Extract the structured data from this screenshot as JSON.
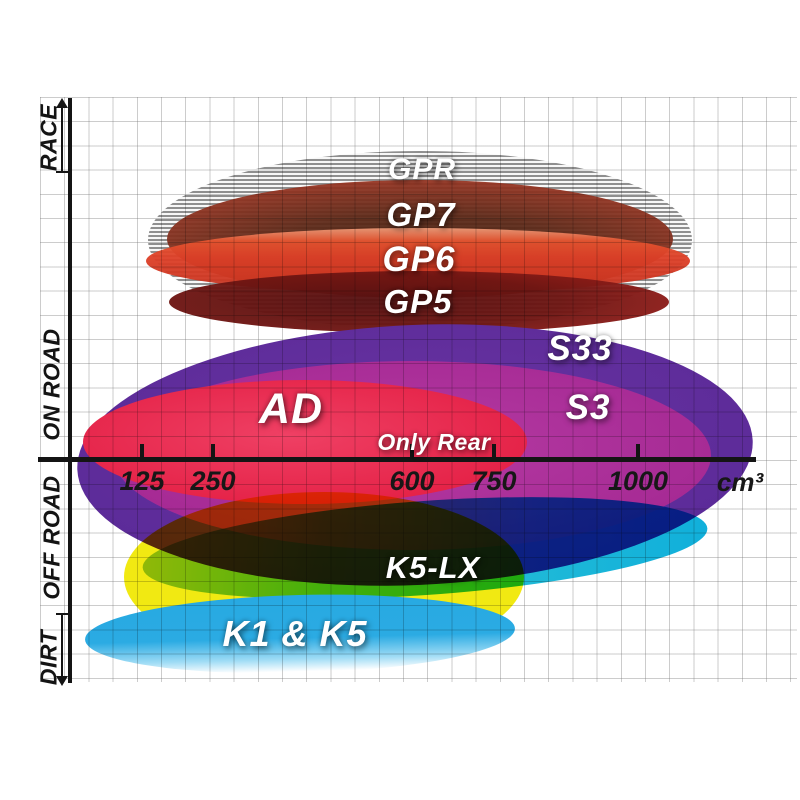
{
  "chart_data": {
    "type": "area",
    "description": "Brake pad compound application chart: ellipses show engine displacement range (x, cm³) vs riding category (y: RACE / ON ROAD / OFF ROAD / DIRT)",
    "x_axis": {
      "unit": "cm³",
      "ticks": [
        125,
        250,
        600,
        750,
        1000
      ],
      "range": [
        0,
        1250
      ]
    },
    "y_axis": {
      "categories": [
        "RACE",
        "ON ROAD",
        "OFF ROAD",
        "DIRT"
      ],
      "grid": true
    },
    "series": [
      {
        "name": "GPR",
        "band": "RACE",
        "x_range_cm3": [
          135,
          1080
        ],
        "style": "grey-striped"
      },
      {
        "name": "GP7",
        "band": "RACE",
        "x_range_cm3": [
          170,
          1045
        ],
        "style": "dark-red"
      },
      {
        "name": "GP6",
        "band": "RACE / ON ROAD",
        "x_range_cm3": [
          130,
          1075
        ],
        "style": "red"
      },
      {
        "name": "GP5",
        "band": "ON ROAD / RACE",
        "x_range_cm3": [
          170,
          1040
        ],
        "style": "dark-maroon"
      },
      {
        "name": "S33",
        "band": "ON ROAD",
        "x_range_cm3": [
          10,
          1175
        ],
        "style": "purple"
      },
      {
        "name": "S3",
        "band": "ON ROAD",
        "x_range_cm3": [
          75,
          1110
        ],
        "style": "magenta"
      },
      {
        "name": "AD",
        "band": "ON ROAD",
        "x_range_cm3": [
          25,
          795
        ],
        "style": "crimson",
        "note": "Only Rear"
      },
      {
        "name": "K5-LX",
        "band": "OFF ROAD",
        "x_range_cm3": [
          130,
          1100
        ],
        "style": "green-to-teal gradient"
      },
      {
        "name": "K1 & K5",
        "band": "DIRT",
        "x_range_cm3": [
          25,
          770
        ],
        "style": "cyan"
      }
    ],
    "legend_position": "none",
    "title": ""
  },
  "labels": {
    "gpr": "GPR",
    "gp7": "GP7",
    "gp6": "GP6",
    "gp5": "GP5",
    "s33": "S33",
    "s3": "S3",
    "ad": "AD",
    "only_rear": "Only Rear",
    "k5lx": "K5-LX",
    "k1k5": "K1 & K5"
  },
  "axis": {
    "ticks": [
      "125",
      "250",
      "600",
      "750",
      "1000"
    ],
    "unit": "cm³"
  },
  "y_labels": {
    "race": "RACE",
    "on_road": "ON ROAD",
    "off_road": "OFF ROAD",
    "dirt": "DIRT"
  },
  "colors": {
    "purple": "#5c2b99",
    "magenta": "#a72b95",
    "crimson": "#e52348",
    "red": "#dd3f27",
    "dark_red": "#5c2817",
    "maroon": "#6d1512",
    "grey_stripe": "#8f8f8f",
    "yellow": "#f1e912",
    "teal": "#1fb9d7",
    "green": "#9ccb6a",
    "cyan": "#29abe2",
    "axis_black": "#141414"
  }
}
